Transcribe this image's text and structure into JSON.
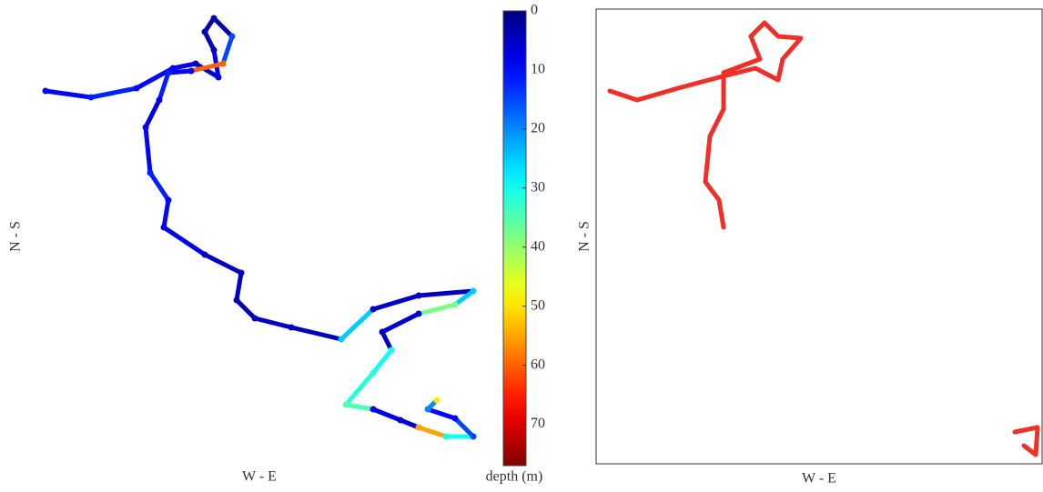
{
  "chart_data": [
    {
      "type": "track",
      "xlabel": "W - E",
      "ylabel": "N - S",
      "frame": false,
      "xlim": [
        0,
        490
      ],
      "ylim": [
        0,
        500
      ],
      "x": [
        10,
        60,
        110,
        150,
        175,
        200,
        195,
        185,
        195,
        215,
        205,
        170,
        145,
        135,
        120,
        125,
        145,
        140,
        185,
        225,
        220,
        240,
        280,
        335,
        370,
        420,
        480,
        460,
        420,
        380,
        390,
        370,
        340,
        370,
        400,
        420,
        450,
        480,
        460,
        430,
        440
      ],
      "y": [
        410,
        403,
        413,
        435,
        440,
        425,
        455,
        475,
        490,
        470,
        440,
        432,
        430,
        400,
        370,
        320,
        290,
        260,
        230,
        210,
        180,
        160,
        150,
        137,
        170,
        185,
        190,
        175,
        165,
        145,
        125,
        100,
        65,
        60,
        48,
        40,
        30,
        30,
        50,
        60,
        70
      ],
      "depth": [
        10,
        12,
        10,
        8,
        6,
        8,
        5,
        4,
        3,
        15,
        60,
        10,
        12,
        8,
        10,
        12,
        10,
        8,
        5,
        5,
        4,
        5,
        5,
        25,
        5,
        5,
        25,
        38,
        6,
        5,
        30,
        32,
        35,
        8,
        6,
        55,
        30,
        15,
        10,
        20,
        50
      ],
      "colorbar": {
        "label": "depth (m)",
        "lim": [
          0,
          77
        ],
        "ticks": [
          0,
          10,
          20,
          30,
          40,
          50,
          60,
          70
        ],
        "colormap": "jet"
      }
    },
    {
      "type": "track",
      "xlabel": "W - E",
      "ylabel": "N - S",
      "frame": true,
      "color": "#f03028",
      "xlim": [
        0,
        490
      ],
      "ylim": [
        0,
        500
      ],
      "x": [
        15,
        45,
        90,
        135,
        175,
        200,
        205,
        225,
        200,
        185,
        170,
        180,
        140,
        140,
        125,
        120,
        135,
        140,
        null,
        460,
        485,
        483,
        470
      ],
      "y": [
        410,
        400,
        413,
        425,
        435,
        422,
        445,
        468,
        470,
        485,
        470,
        445,
        430,
        390,
        360,
        310,
        290,
        260,
        null,
        35,
        40,
        10,
        20
      ]
    }
  ]
}
